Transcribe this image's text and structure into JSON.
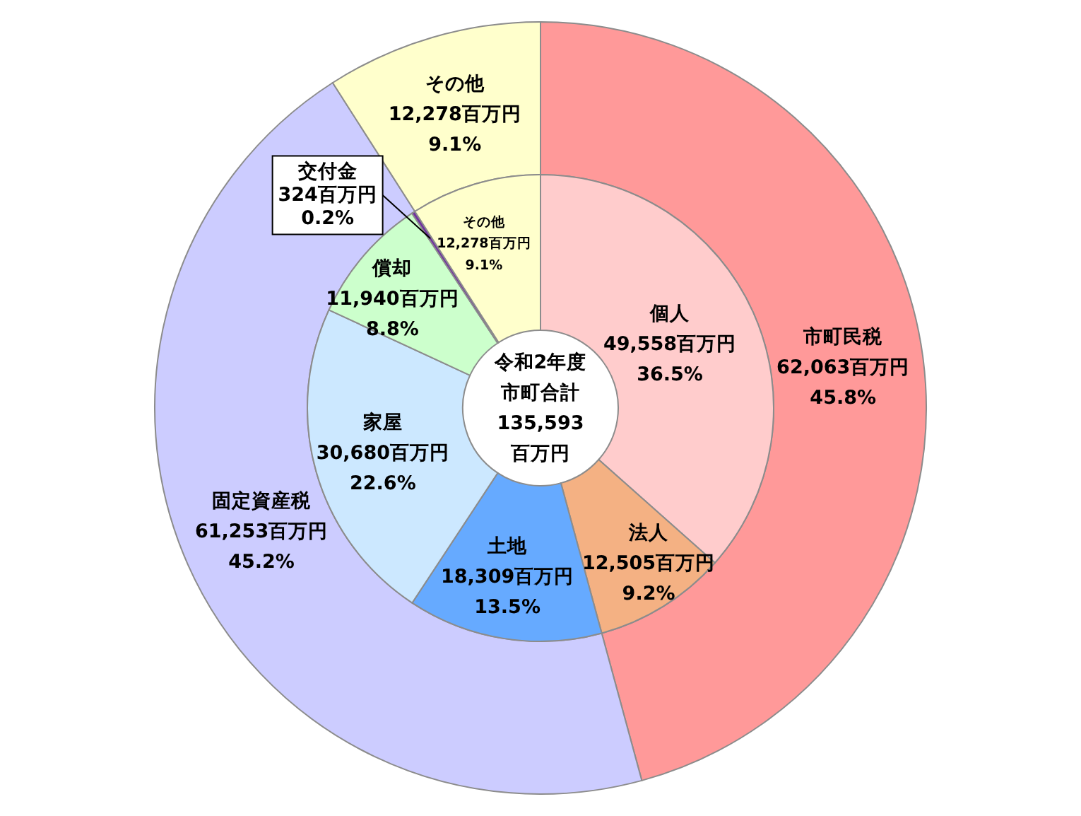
{
  "chart_data": {
    "type": "donut",
    "series": [
      {
        "values": [
          62063,
          61253,
          12278
        ],
        "colors": [
          "#ff9999",
          "#ccccff",
          "#ffffcc"
        ],
        "value_labels": [
          "市町民税\n62,063百万円\n45.8%",
          "固定資産税\n61,253百万円\n45.2%",
          "その他\n12,278百万円\n9.1%"
        ]
      },
      {
        "values": [
          49558,
          12505,
          18309,
          30680,
          11940,
          324,
          12278
        ],
        "colors": [
          "#ffcccc",
          "#f4b183",
          "#66aaff",
          "#cce8ff",
          "#ccffcc",
          "#7030a0",
          "#ffffcc"
        ],
        "value_labels": [
          "個人\n49,558百万円\n36.5%",
          "法人\n12,505百万円\n9.2%",
          "土地\n18,309百万円\n13.5%",
          "家屋\n30,680百万円\n22.6%",
          "償却\n11,940百万円\n8.8%",
          "交付金\n324百万円\n0.2%",
          "その他\n12,278百万円\n9.1%"
        ]
      }
    ],
    "annotations": [
      "令和2年度市町合計\n135,593\n百万円"
    ]
  }
}
